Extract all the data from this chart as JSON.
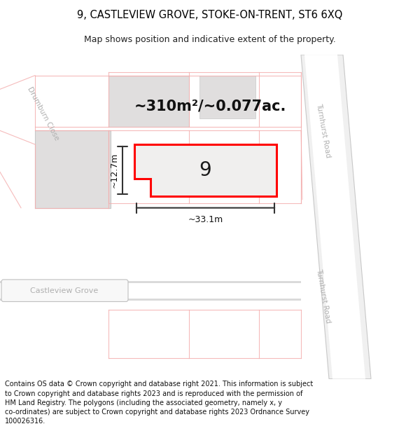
{
  "title": "9, CASTLEVIEW GROVE, STOKE-ON-TRENT, ST6 6XQ",
  "subtitle": "Map shows position and indicative extent of the property.",
  "footer": "Contains OS data © Crown copyright and database right 2021. This information is subject\nto Crown copyright and database rights 2023 and is reproduced with the permission of\nHM Land Registry. The polygons (including the associated geometry, namely x, y\nco-ordinates) are subject to Crown copyright and database rights 2023 Ordnance Survey\n100026316.",
  "area_text": "~310m²/~0.077ac.",
  "label_number": "9",
  "dim_width": "~33.1m",
  "dim_height": "~12.7m",
  "bg_color": "#ffffff",
  "building_fill": "#e0dede",
  "building_edge": "#c8c8c8",
  "road_fill": "#ffffff",
  "road_edge": "#c0c0c0",
  "pink_line": "#f4b0b0",
  "plot_outline_color": "#ff0000",
  "plot_fill_color": "#efefef",
  "street_color": "#b0b0b0",
  "title_fontsize": 10.5,
  "subtitle_fontsize": 9,
  "area_fontsize": 15,
  "footer_fontsize": 7.0
}
